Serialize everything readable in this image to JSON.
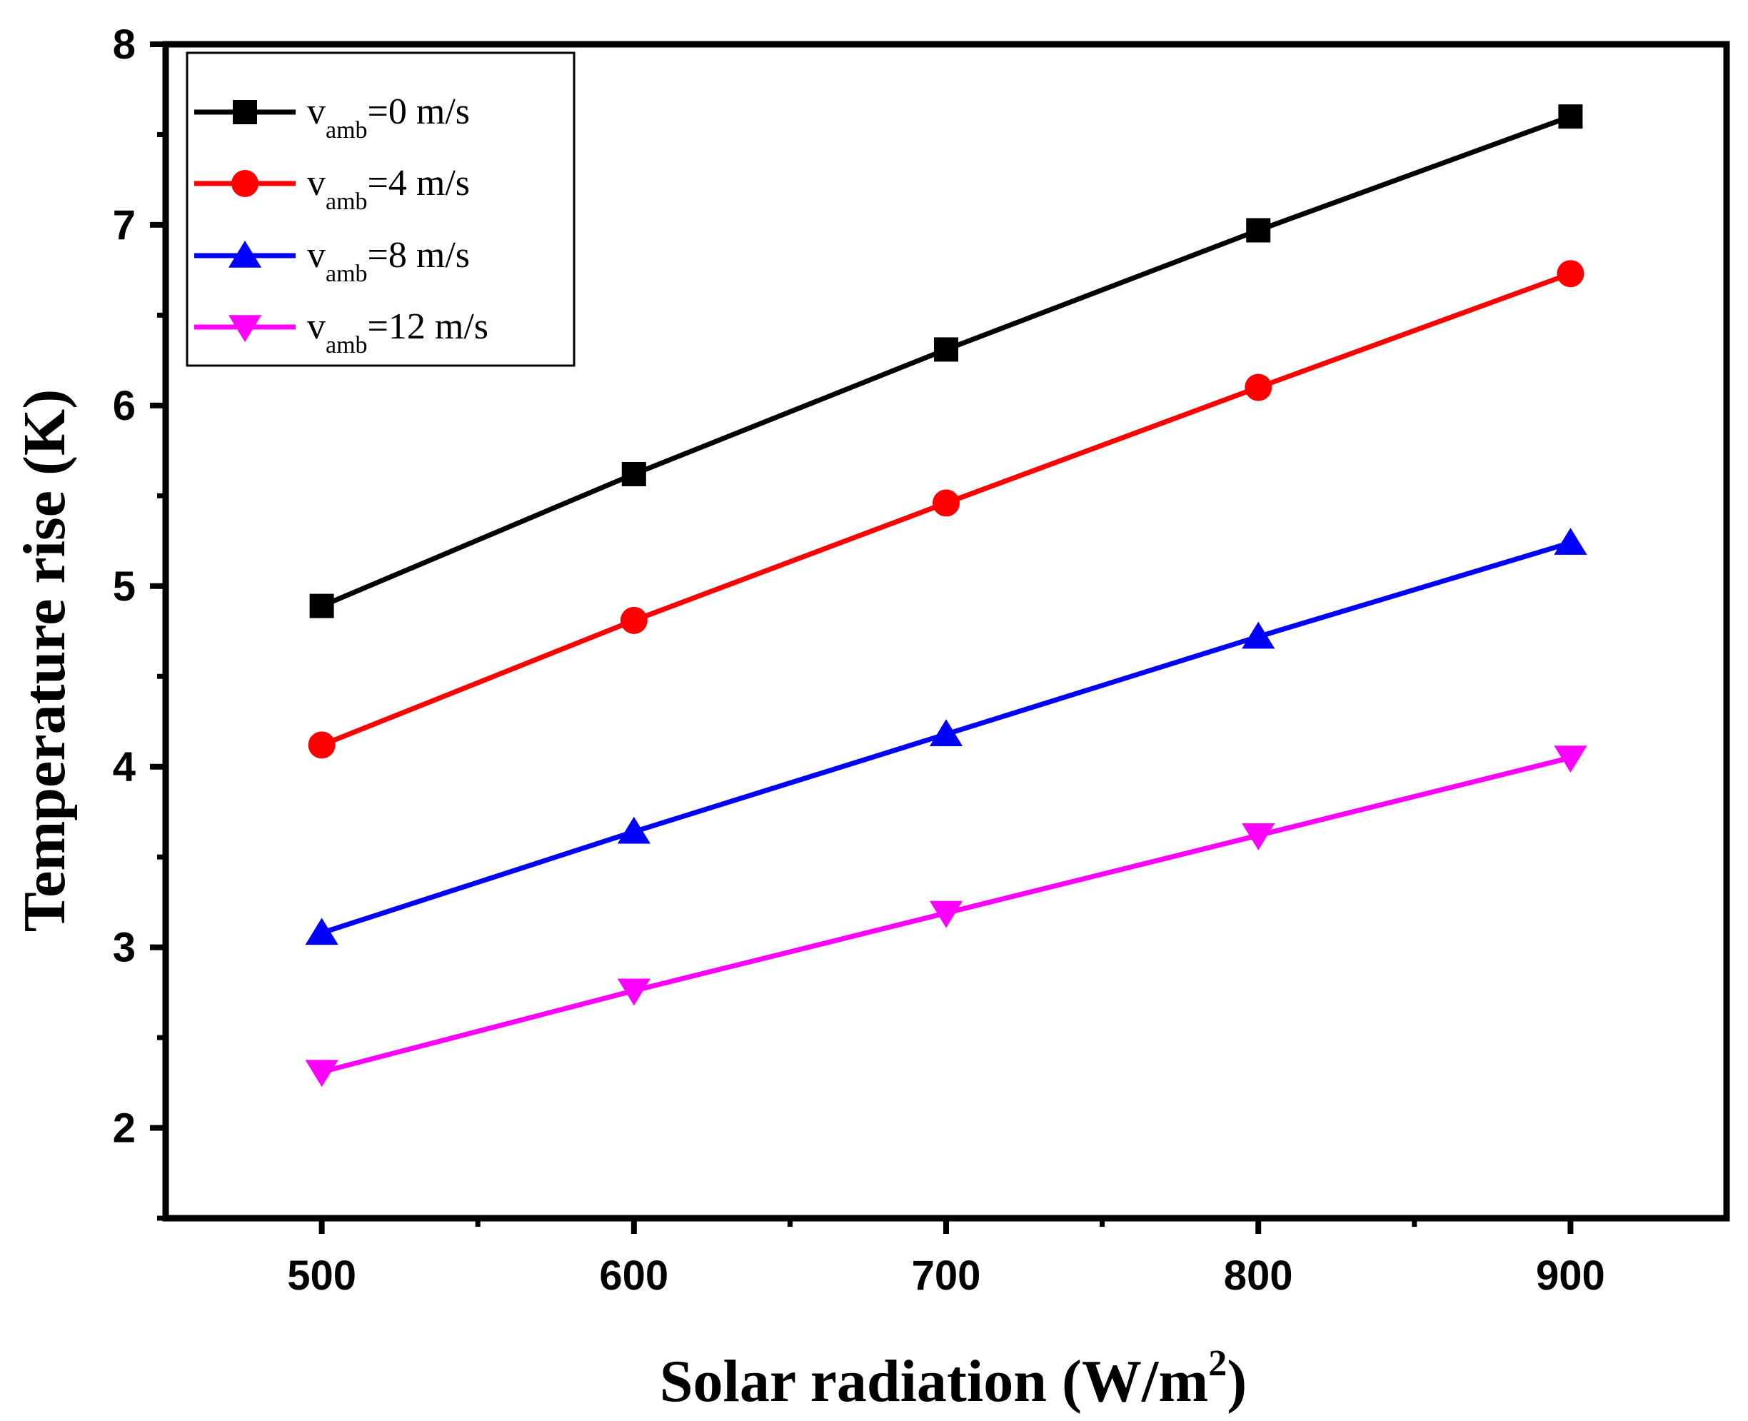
{
  "chart_data": {
    "type": "line",
    "title": "",
    "xlabel": "Solar radiation (W/m",
    "xlabel_sup": "2",
    "xlabel_end": ")",
    "ylabel": "Temperature rise (K)",
    "xlim": [
      450,
      950
    ],
    "ylim": [
      1.5,
      8
    ],
    "x_ticks": [
      500,
      600,
      700,
      800,
      900
    ],
    "y_ticks": [
      2,
      3,
      4,
      5,
      6,
      7,
      8
    ],
    "x": [
      500,
      600,
      700,
      800,
      900
    ],
    "legend_position": "top-left",
    "series": [
      {
        "name": "vamb=0 m/s",
        "label_main": "v",
        "label_sub": "amb",
        "label_rest": "=0 m/s",
        "color": "#000000",
        "marker": "square",
        "values": [
          4.89,
          5.62,
          6.31,
          6.97,
          7.6
        ]
      },
      {
        "name": "vamb=4 m/s",
        "label_main": "v",
        "label_sub": "amb",
        "label_rest": "=4 m/s",
        "color": "#ff0000",
        "marker": "circle",
        "values": [
          4.12,
          4.81,
          5.46,
          6.1,
          6.73
        ]
      },
      {
        "name": "vamb=8 m/s",
        "label_main": "v",
        "label_sub": "amb",
        "label_rest": "=8 m/s",
        "color": "#0000ff",
        "marker": "triangle-up",
        "values": [
          3.08,
          3.64,
          4.18,
          4.72,
          5.24
        ]
      },
      {
        "name": "vamb=12 m/s",
        "label_main": "v",
        "label_sub": "amb",
        "label_rest": "=12 m/s",
        "color": "#ff00ff",
        "marker": "triangle-down",
        "values": [
          2.31,
          2.76,
          3.19,
          3.62,
          4.05
        ]
      }
    ]
  }
}
